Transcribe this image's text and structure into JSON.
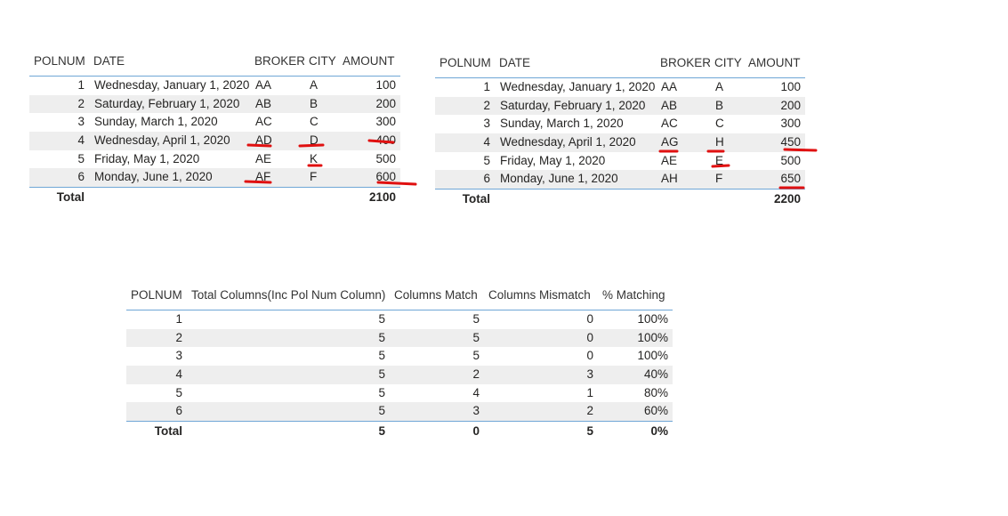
{
  "tables": [
    {
      "headers": [
        "POLNUM",
        "DATE",
        "BROKER",
        "CITY",
        "AMOUNT"
      ],
      "rows": [
        [
          1,
          "Wednesday, January 1, 2020",
          "AA",
          "A",
          100
        ],
        [
          2,
          "Saturday, February 1, 2020",
          "AB",
          "B",
          200
        ],
        [
          3,
          "Sunday, March 1, 2020",
          "AC",
          "C",
          300
        ],
        [
          4,
          "Wednesday, April 1, 2020",
          "AD",
          "D",
          400
        ],
        [
          5,
          "Friday, May 1, 2020",
          "AE",
          "K",
          500
        ],
        [
          6,
          "Monday, June 1, 2020",
          "AF",
          "F",
          600
        ]
      ],
      "total": [
        "Total",
        null,
        null,
        null,
        2100
      ]
    },
    {
      "headers": [
        "POLNUM",
        "DATE",
        "BROKER",
        "CITY",
        "AMOUNT"
      ],
      "rows": [
        [
          1,
          "Wednesday, January 1, 2020",
          "AA",
          "A",
          100
        ],
        [
          2,
          "Saturday, February 1, 2020",
          "AB",
          "B",
          200
        ],
        [
          3,
          "Sunday, March 1, 2020",
          "AC",
          "C",
          300
        ],
        [
          4,
          "Wednesday, April 1, 2020",
          "AG",
          "H",
          450
        ],
        [
          5,
          "Friday, May 1, 2020",
          "AE",
          "E",
          500
        ],
        [
          6,
          "Monday, June 1, 2020",
          "AH",
          "F",
          650
        ]
      ],
      "total": [
        "Total",
        null,
        null,
        null,
        2200
      ]
    },
    {
      "headers": [
        "POLNUM",
        "Total Columns(Inc Pol Num Column)",
        "Columns Match",
        "Columns Mismatch",
        "% Matching"
      ],
      "rows": [
        [
          1,
          5,
          5,
          0,
          "100%"
        ],
        [
          2,
          5,
          5,
          0,
          "100%"
        ],
        [
          3,
          5,
          5,
          0,
          "100%"
        ],
        [
          4,
          5,
          2,
          3,
          "40%"
        ],
        [
          5,
          5,
          4,
          1,
          "80%"
        ],
        [
          6,
          5,
          3,
          2,
          "60%"
        ]
      ],
      "total": [
        "Total",
        5,
        0,
        5,
        "0%"
      ]
    }
  ]
}
